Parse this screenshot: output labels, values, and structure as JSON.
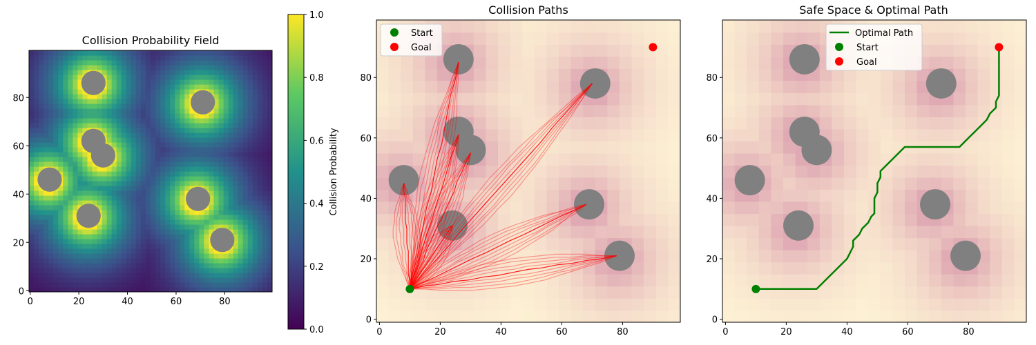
{
  "chart_data": [
    {
      "type": "heatmap",
      "title": "Collision Probability Field",
      "xlim": [
        0,
        99
      ],
      "ylim": [
        0,
        99
      ],
      "xticks": [
        0,
        20,
        40,
        60,
        80
      ],
      "yticks": [
        0,
        20,
        40,
        60,
        80
      ],
      "colormap": "viridis",
      "colorbar": {
        "label": "Collision Probability",
        "range": [
          0,
          1
        ],
        "ticks": [
          "0.0",
          "0.2",
          "0.4",
          "0.6",
          "0.8",
          "1.0"
        ]
      },
      "obstacles": [
        {
          "x": 26,
          "y": 86,
          "r": 5
        },
        {
          "x": 71,
          "y": 78,
          "r": 5
        },
        {
          "x": 26,
          "y": 62,
          "r": 5
        },
        {
          "x": 30,
          "y": 56,
          "r": 5
        },
        {
          "x": 8,
          "y": 46,
          "r": 5
        },
        {
          "x": 69,
          "y": 38,
          "r": 5
        },
        {
          "x": 24,
          "y": 31,
          "r": 5
        },
        {
          "x": 79,
          "y": 21,
          "r": 5
        }
      ],
      "obstacle_color": "#808080"
    },
    {
      "type": "line",
      "title": "Collision Paths",
      "xlim": [
        -1,
        99
      ],
      "ylim": [
        -1,
        99
      ],
      "xticks": [
        0,
        20,
        40,
        60,
        80
      ],
      "yticks": [
        0,
        20,
        40,
        60,
        80
      ],
      "start": {
        "x": 10,
        "y": 10
      },
      "goal": {
        "x": 90,
        "y": 90
      },
      "path_color": "#ff0000",
      "path_targets": [
        {
          "x": 8,
          "y": 45
        },
        {
          "x": 26,
          "y": 85
        },
        {
          "x": 26,
          "y": 61
        },
        {
          "x": 30,
          "y": 55
        },
        {
          "x": 24,
          "y": 31
        },
        {
          "x": 70,
          "y": 78
        },
        {
          "x": 68,
          "y": 38
        },
        {
          "x": 78,
          "y": 21
        }
      ],
      "legend": [
        "Start",
        "Goal"
      ],
      "legend_position": "upper left"
    },
    {
      "type": "line",
      "title": "Safe Space & Optimal Path",
      "xlim": [
        -1,
        99
      ],
      "ylim": [
        -1,
        99
      ],
      "xticks": [
        0,
        20,
        40,
        60,
        80
      ],
      "yticks": [
        0,
        20,
        40,
        60,
        80
      ],
      "series": [
        {
          "name": "Optimal Path",
          "color": "#007f00",
          "points": [
            [
              10,
              10
            ],
            [
              30,
              10
            ],
            [
              35,
              15
            ],
            [
              40,
              20
            ],
            [
              41,
              22
            ],
            [
              42,
              24
            ],
            [
              42,
              26
            ],
            [
              44,
              28
            ],
            [
              45,
              30
            ],
            [
              47,
              32
            ],
            [
              48,
              34
            ],
            [
              49,
              35
            ],
            [
              49,
              37
            ],
            [
              49,
              40
            ],
            [
              50,
              42
            ],
            [
              50,
              45
            ],
            [
              51,
              47
            ],
            [
              51,
              49
            ],
            [
              53,
              51
            ],
            [
              55,
              53
            ],
            [
              57,
              55
            ],
            [
              59,
              57
            ],
            [
              61,
              57
            ],
            [
              77,
              57
            ],
            [
              80,
              60
            ],
            [
              83,
              63
            ],
            [
              86,
              66
            ],
            [
              87,
              68
            ],
            [
              89,
              70
            ],
            [
              89,
              72
            ],
            [
              90,
              74
            ],
            [
              90,
              90
            ]
          ]
        }
      ],
      "start": {
        "x": 10,
        "y": 10
      },
      "goal": {
        "x": 90,
        "y": 90
      },
      "legend": [
        "Optimal Path",
        "Start",
        "Goal"
      ],
      "legend_position": "upper center"
    }
  ],
  "colors": {
    "start": "#008000",
    "goal": "#ff0000",
    "obstacle": "#808080"
  }
}
